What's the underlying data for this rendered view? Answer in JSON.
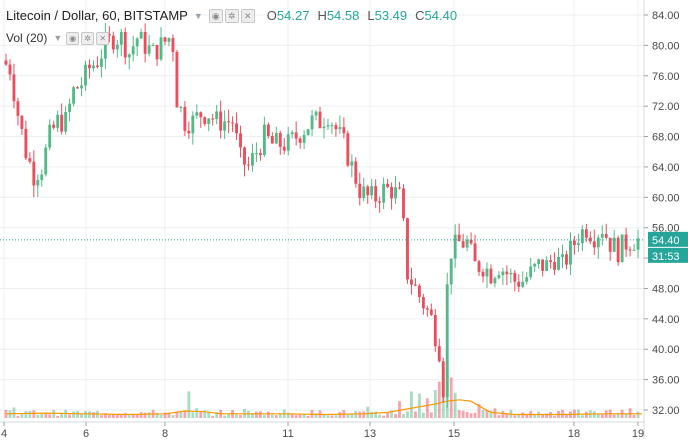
{
  "legend": {
    "symbol": "Litecoin / Dollar, 60, BITSTAMP",
    "caret_icon": "chevron-down-icon",
    "o_label": "O",
    "o_value": "54.27",
    "h_label": "H",
    "h_value": "54.58",
    "l_label": "L",
    "l_value": "53.49",
    "c_label": "C",
    "c_value": "54.40"
  },
  "volume_legend": {
    "label": "Vol (20)"
  },
  "colors": {
    "up": "#53b987",
    "down": "#eb4d5c",
    "vol_ma": "#ff9800",
    "last_price": "#26a69a",
    "grid": "#eceff2"
  },
  "chart_data": {
    "type": "candlestick",
    "x_ticks": [
      "4",
      "6",
      "8",
      "11",
      "13",
      "15",
      "18",
      "19"
    ],
    "y_ticks": [
      "84.00",
      "80.00",
      "76.00",
      "72.00",
      "68.00",
      "64.00",
      "60.00",
      "56.00",
      "52.00",
      "48.00",
      "44.00",
      "40.00",
      "36.00",
      "32.00"
    ],
    "ylim": [
      31,
      86
    ],
    "last_price": "54.40",
    "countdown": "31:53",
    "close_path": [
      [
        0,
        78
      ],
      [
        2,
        77
      ],
      [
        4,
        71
      ],
      [
        6,
        66
      ],
      [
        8,
        63
      ],
      [
        10,
        64
      ],
      [
        12,
        68
      ],
      [
        14,
        70
      ],
      [
        16,
        70
      ],
      [
        18,
        74
      ],
      [
        20,
        75
      ],
      [
        22,
        77
      ],
      [
        24,
        78
      ],
      [
        26,
        80
      ],
      [
        28,
        81
      ],
      [
        30,
        81
      ],
      [
        32,
        79
      ],
      [
        34,
        81
      ],
      [
        36,
        80
      ],
      [
        38,
        79
      ],
      [
        40,
        80
      ],
      [
        42,
        81
      ],
      [
        43,
        80
      ],
      [
        44,
        73
      ],
      [
        46,
        70
      ],
      [
        48,
        70
      ],
      [
        50,
        71
      ],
      [
        52,
        71
      ],
      [
        54,
        70
      ],
      [
        56,
        70
      ],
      [
        58,
        70
      ],
      [
        60,
        65
      ],
      [
        62,
        64
      ],
      [
        64,
        66
      ],
      [
        66,
        68
      ],
      [
        68,
        67
      ],
      [
        70,
        67
      ],
      [
        72,
        67
      ],
      [
        74,
        68
      ],
      [
        76,
        69
      ],
      [
        78,
        70
      ],
      [
        80,
        70
      ],
      [
        82,
        71
      ],
      [
        84,
        69
      ],
      [
        86,
        67
      ],
      [
        88,
        64
      ],
      [
        90,
        61
      ],
      [
        92,
        60
      ],
      [
        94,
        60
      ],
      [
        96,
        61
      ],
      [
        98,
        61
      ],
      [
        100,
        60
      ],
      [
        101,
        56
      ],
      [
        102,
        50
      ],
      [
        104,
        48
      ],
      [
        106,
        46
      ],
      [
        108,
        44
      ],
      [
        110,
        40
      ],
      [
        111,
        35
      ],
      [
        112,
        48
      ],
      [
        113,
        53
      ],
      [
        115,
        54
      ],
      [
        117,
        54
      ],
      [
        119,
        51
      ],
      [
        121,
        51
      ],
      [
        123,
        50
      ],
      [
        125,
        51
      ],
      [
        127,
        50
      ],
      [
        129,
        49
      ],
      [
        131,
        49
      ],
      [
        133,
        50
      ],
      [
        135,
        51
      ],
      [
        137,
        51
      ],
      [
        139,
        52
      ],
      [
        141,
        51
      ],
      [
        143,
        53
      ],
      [
        145,
        55
      ],
      [
        147,
        56
      ],
      [
        149,
        55
      ],
      [
        151,
        56
      ],
      [
        153,
        54
      ],
      [
        155,
        53
      ],
      [
        157,
        54
      ],
      [
        159,
        54.4
      ]
    ],
    "volume": {
      "ylim": [
        0,
        100
      ],
      "spikes": [
        [
          2,
          15
        ],
        [
          46,
          38
        ],
        [
          48,
          14
        ],
        [
          60,
          13
        ],
        [
          70,
          12
        ],
        [
          91,
          16
        ],
        [
          99,
          24
        ],
        [
          102,
          38
        ],
        [
          104,
          35
        ],
        [
          106,
          28
        ],
        [
          108,
          40
        ],
        [
          109,
          52
        ],
        [
          110,
          70
        ],
        [
          111,
          85
        ],
        [
          112,
          58
        ],
        [
          113,
          36
        ],
        [
          119,
          20
        ],
        [
          123,
          14
        ],
        [
          139,
          10
        ],
        [
          152,
          12
        ],
        [
          157,
          14
        ]
      ],
      "ma": [
        [
          0,
          6
        ],
        [
          10,
          7
        ],
        [
          20,
          6
        ],
        [
          30,
          5
        ],
        [
          40,
          6
        ],
        [
          45,
          10
        ],
        [
          50,
          9
        ],
        [
          54,
          6
        ],
        [
          60,
          6
        ],
        [
          70,
          6
        ],
        [
          80,
          5
        ],
        [
          90,
          6
        ],
        [
          96,
          8
        ],
        [
          100,
          12
        ],
        [
          104,
          16
        ],
        [
          108,
          20
        ],
        [
          111,
          24
        ],
        [
          114,
          26
        ],
        [
          117,
          24
        ],
        [
          120,
          14
        ],
        [
          122,
          8
        ],
        [
          128,
          5
        ],
        [
          140,
          5
        ],
        [
          150,
          6
        ],
        [
          160,
          6
        ]
      ]
    }
  }
}
